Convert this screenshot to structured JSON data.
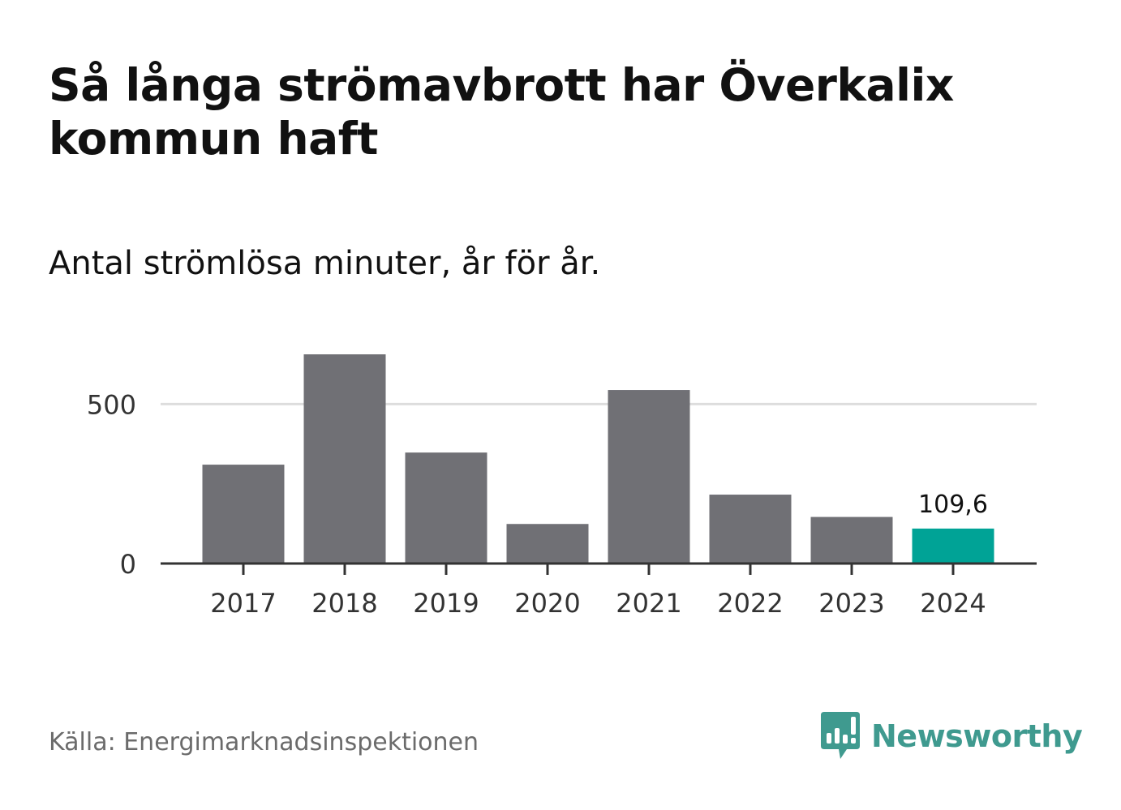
{
  "title": "Så långa strömavbrott har Överkalix kommun haft",
  "subtitle": "Antal strömlösa minuter, år för år.",
  "source": "Källa: Energimarknadsinspektionen",
  "brand": {
    "name": "Newsworthy",
    "icon": "bar-chart-speech-bubble-icon",
    "color": "#3f9a8f"
  },
  "colors": {
    "bar": "#707075",
    "highlight": "#00a396",
    "grid": "#dddddd",
    "axis": "#333333",
    "tick_label": "#333333"
  },
  "chart_data": {
    "type": "bar",
    "categories": [
      "2017",
      "2018",
      "2019",
      "2020",
      "2021",
      "2022",
      "2023",
      "2024"
    ],
    "values": [
      310,
      656,
      348,
      124,
      544,
      216,
      146,
      109.6
    ],
    "highlight_index": 7,
    "data_labels": [
      {
        "index": 7,
        "text": "109,6"
      }
    ],
    "title": "Så långa strömavbrott har Överkalix kommun haft",
    "subtitle": "Antal strömlösa minuter, år för år.",
    "xlabel": "",
    "ylabel": "",
    "ylim": [
      0,
      656
    ],
    "yticks": [
      0,
      500
    ],
    "ytick_labels": [
      "0",
      "500"
    ],
    "grid": true,
    "legend": "none"
  }
}
